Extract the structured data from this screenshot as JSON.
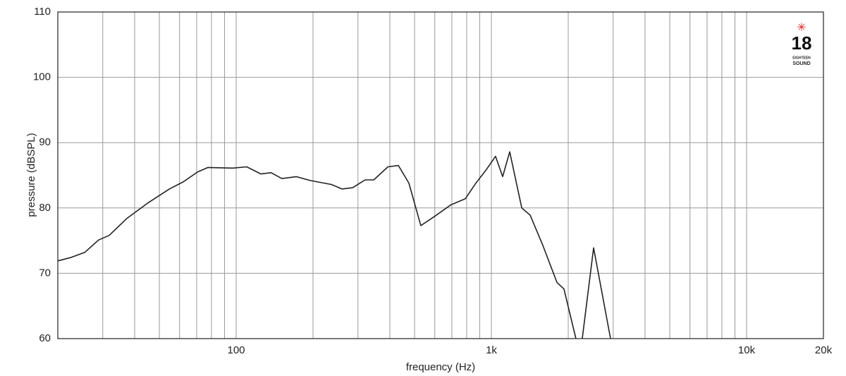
{
  "chart_data": {
    "type": "line",
    "x_label": "frequency (Hz)",
    "y_label": "pressure (dBSPL)",
    "x_scale": "log",
    "grid": true,
    "xlim": [
      20,
      20000
    ],
    "ylim": [
      60,
      110
    ],
    "xticks": [
      100,
      {
        "value": 1000,
        "label": "1k"
      },
      {
        "value": 10000,
        "label": "10k"
      },
      {
        "value": 20000,
        "label": "20k"
      }
    ],
    "x_minor_grid": [
      30,
      40,
      50,
      60,
      70,
      80,
      90,
      200,
      300,
      400,
      500,
      600,
      700,
      800,
      900,
      2000,
      3000,
      4000,
      5000,
      6000,
      7000,
      8000,
      9000
    ],
    "yticks": [
      60,
      70,
      80,
      90,
      100,
      110
    ],
    "series": [
      {
        "color": "#222222",
        "x": [
          20,
          22.4,
          25.5,
          28.9,
          31.8,
          37.3,
          45.2,
          54.7,
          62,
          70.5,
          77.5,
          96.8,
          110,
          125,
          137,
          151,
          172,
          195,
          236,
          260,
          286,
          320,
          346,
          393,
          432,
          475,
          529,
          593,
          695,
          790,
          869,
          956,
          1038,
          1107,
          1180,
          1315,
          1419,
          1590,
          1806,
          1924,
          2144,
          null,
          2270,
          2514,
          2930
        ],
        "values": [
          71.9,
          72.4,
          73.2,
          75.1,
          75.8,
          78.4,
          80.8,
          82.9,
          84.0,
          85.5,
          86.2,
          86.1,
          86.3,
          85.2,
          85.4,
          84.5,
          84.8,
          84.2,
          83.6,
          82.9,
          83.1,
          84.3,
          84.3,
          86.3,
          86.5,
          83.8,
          77.3,
          78.6,
          80.5,
          81.4,
          83.8,
          85.9,
          87.9,
          84.8,
          88.6,
          80.0,
          78.9,
          74.3,
          68.6,
          67.6,
          60,
          null,
          60,
          73.9,
          60
        ]
      }
    ]
  },
  "logo": {
    "number": "18",
    "line1": "EIGHTEEN",
    "line2": "SOUND"
  }
}
